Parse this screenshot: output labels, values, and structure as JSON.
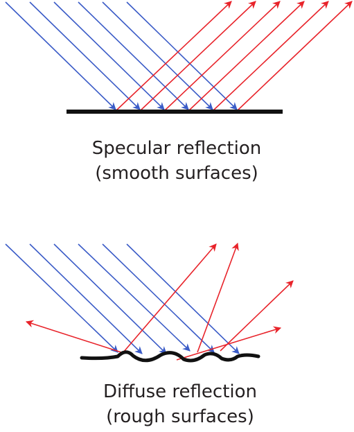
{
  "specular": {
    "caption_line1": "Specular reflection",
    "caption_line2": "(smooth surfaces)"
  },
  "diffuse": {
    "caption_line1": "Diffuse reflection",
    "caption_line2": "(rough surfaces)"
  },
  "colors": {
    "incident_ray": "#3a5bc7",
    "reflected_ray": "#e8232a",
    "surface": "#111111",
    "text": "#231f20"
  }
}
